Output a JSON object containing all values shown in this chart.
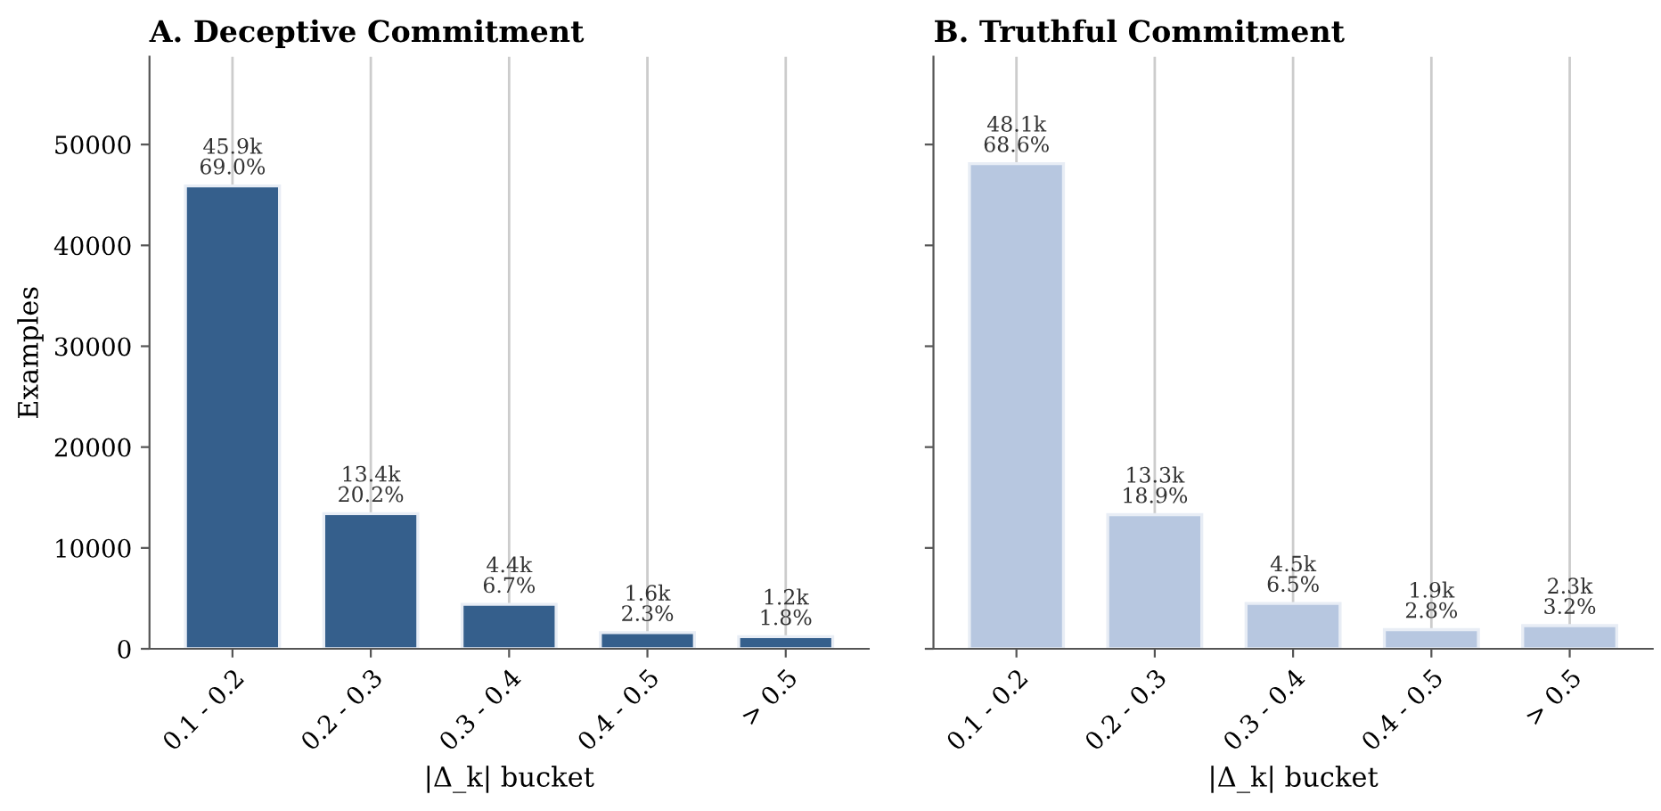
{
  "chart_data": [
    {
      "type": "bar",
      "title": "A. Deceptive Commitment",
      "xlabel": "|Δ_k| bucket",
      "ylabel": "Examples",
      "categories": [
        "0.1 - 0.2",
        "0.2 - 0.3",
        "0.3 - 0.4",
        "0.4 - 0.5",
        "> 0.5"
      ],
      "values": [
        45900,
        13400,
        4400,
        1600,
        1200
      ],
      "color": "#355f8c",
      "value_labels": [
        "45.9k\n69.0%",
        "13.4k\n20.2%",
        "4.4k\n6.7%",
        "1.6k\n2.3%",
        "1.2k\n1.8%"
      ],
      "ylim": [
        0,
        58700
      ],
      "yticks": [
        0,
        10000,
        20000,
        30000,
        40000,
        50000
      ],
      "grid": "x"
    },
    {
      "type": "bar",
      "title": "B. Truthful Commitment",
      "xlabel": "|Δ_k| bucket",
      "categories": [
        "0.1 - 0.2",
        "0.2 - 0.3",
        "0.3 - 0.4",
        "0.4 - 0.5",
        "> 0.5"
      ],
      "values": [
        48100,
        13300,
        4500,
        1900,
        2300
      ],
      "color": "#b7c7e0",
      "value_labels": [
        "48.1k\n68.6%",
        "13.3k\n18.9%",
        "4.5k\n6.5%",
        "1.9k\n2.8%",
        "2.3k\n3.2%"
      ],
      "ylim": [
        0,
        58700
      ],
      "yticks": [
        0,
        10000,
        20000,
        30000,
        40000,
        50000
      ],
      "grid": "x",
      "tick_labels": "x"
    }
  ]
}
